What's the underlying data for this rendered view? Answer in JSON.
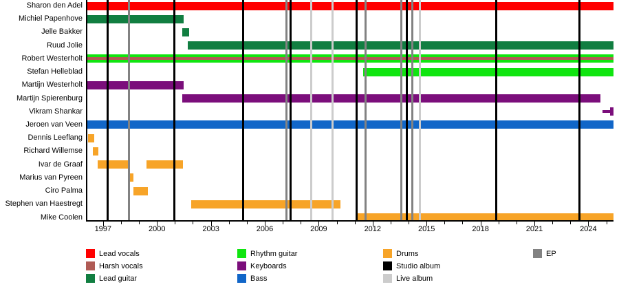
{
  "chart_data": {
    "type": "timeline",
    "description": "Band members timeline with release markers",
    "x_axis": {
      "min_year": 1996.05,
      "max_year": 2025.4,
      "tick_interval": 1,
      "major_ticks": [
        1997,
        2000,
        2003,
        2006,
        2009,
        2012,
        2015,
        2018,
        2021,
        2024
      ]
    },
    "colors": {
      "lead_vocals": "#FF0000",
      "harsh_vocals": "#B05B55",
      "lead_guitar": "#117E41",
      "rhythm_guitar": "#10E510",
      "keyboards": "#7B0E7B",
      "bass": "#1166C8",
      "drums": "#F7A428",
      "studio_album": "#000000",
      "live_album": "#CCCCCC",
      "ep": "#828282"
    },
    "members": [
      {
        "name": "Sharon den Adel",
        "role": "lead_vocals",
        "periods": [
          {
            "start": 1996.05,
            "end": 2025.4
          }
        ]
      },
      {
        "name": "Michiel Papenhove",
        "role": "lead_guitar",
        "periods": [
          {
            "start": 1996.05,
            "end": 2001.48
          }
        ]
      },
      {
        "name": "Jelle Bakker",
        "role": "lead_guitar",
        "periods": [
          {
            "start": 2001.41,
            "end": 2001.79
          }
        ]
      },
      {
        "name": "Ruud Jolie",
        "role": "lead_guitar",
        "periods": [
          {
            "start": 2001.71,
            "end": 2025.4
          }
        ]
      },
      {
        "name": "Robert Westerholt",
        "role": "rhythm_guitar",
        "role2": "harsh_vocals",
        "periods": [
          {
            "start": 1996.05,
            "end": 2025.4
          }
        ]
      },
      {
        "name": "Stefan Helleblad",
        "role": "rhythm_guitar",
        "periods": [
          {
            "start": 2011.47,
            "end": 2025.4
          }
        ]
      },
      {
        "name": "Martijn Westerholt",
        "role": "keyboards",
        "periods": [
          {
            "start": 1996.05,
            "end": 2001.48
          }
        ]
      },
      {
        "name": "Martijn Spierenburg",
        "role": "keyboards",
        "periods": [
          {
            "start": 2001.41,
            "end": 2024.67
          }
        ]
      },
      {
        "name": "Vikram Shankar",
        "role": "keyboards",
        "periods": [
          {
            "start": 2024.79,
            "end": 2025.19,
            "thin": true
          },
          {
            "start": 2025.19,
            "end": 2025.4
          }
        ]
      },
      {
        "name": "Jeroen van Veen",
        "role": "bass",
        "periods": [
          {
            "start": 1996.05,
            "end": 2025.4
          }
        ]
      },
      {
        "name": "Dennis Leeflang",
        "role": "drums",
        "periods": [
          {
            "start": 1996.16,
            "end": 1996.51
          }
        ]
      },
      {
        "name": "Richard Willemse",
        "role": "drums",
        "periods": [
          {
            "start": 1996.43,
            "end": 1996.74
          }
        ]
      },
      {
        "name": "Ivar de Graaf",
        "role": "drums",
        "periods": [
          {
            "start": 1996.7,
            "end": 1998.46
          },
          {
            "start": 1999.42,
            "end": 2001.45
          }
        ]
      },
      {
        "name": "Marius van Pyreen",
        "role": "drums",
        "periods": [
          {
            "start": 1998.46,
            "end": 1998.69
          }
        ]
      },
      {
        "name": "Ciro Palma",
        "role": "drums",
        "periods": [
          {
            "start": 1998.69,
            "end": 1999.49
          }
        ]
      },
      {
        "name": "Stephen van Haestregt",
        "role": "drums",
        "periods": [
          {
            "start": 2001.9,
            "end": 2010.21
          }
        ]
      },
      {
        "name": "Mike Coolen",
        "role": "drums",
        "periods": [
          {
            "start": 2011.05,
            "end": 2025.4
          }
        ]
      }
    ],
    "releases": [
      {
        "year": 1997.27,
        "type": "studio_album"
      },
      {
        "year": 1998.46,
        "type": "ep"
      },
      {
        "year": 2000.95,
        "type": "studio_album"
      },
      {
        "year": 2004.78,
        "type": "studio_album"
      },
      {
        "year": 2007.22,
        "type": "ep"
      },
      {
        "year": 2007.45,
        "type": "studio_album"
      },
      {
        "year": 2008.6,
        "type": "live_album"
      },
      {
        "year": 2009.75,
        "type": "live_album"
      },
      {
        "year": 2011.09,
        "type": "studio_album"
      },
      {
        "year": 2011.62,
        "type": "ep"
      },
      {
        "year": 2013.58,
        "type": "ep"
      },
      {
        "year": 2013.92,
        "type": "studio_album"
      },
      {
        "year": 2014.19,
        "type": "ep"
      },
      {
        "year": 2014.61,
        "type": "live_album"
      },
      {
        "year": 2018.89,
        "type": "studio_album"
      },
      {
        "year": 2023.52,
        "type": "studio_album"
      }
    ],
    "legend": {
      "columns": [
        {
          "items": [
            {
              "key": "lead_vocals",
              "label": "Lead vocals"
            },
            {
              "key": "harsh_vocals",
              "label": "Harsh vocals"
            },
            {
              "key": "lead_guitar",
              "label": "Lead guitar"
            }
          ]
        },
        {
          "items": [
            {
              "key": "rhythm_guitar",
              "label": "Rhythm guitar"
            },
            {
              "key": "keyboards",
              "label": "Keyboards"
            },
            {
              "key": "bass",
              "label": "Bass"
            }
          ]
        },
        {
          "items": [
            {
              "key": "drums",
              "label": "Drums"
            },
            {
              "key": "studio_album",
              "label": "Studio album"
            },
            {
              "key": "live_album",
              "label": "Live album"
            }
          ]
        },
        {
          "items": [
            {
              "key": "ep",
              "label": "EP"
            }
          ]
        }
      ]
    }
  }
}
